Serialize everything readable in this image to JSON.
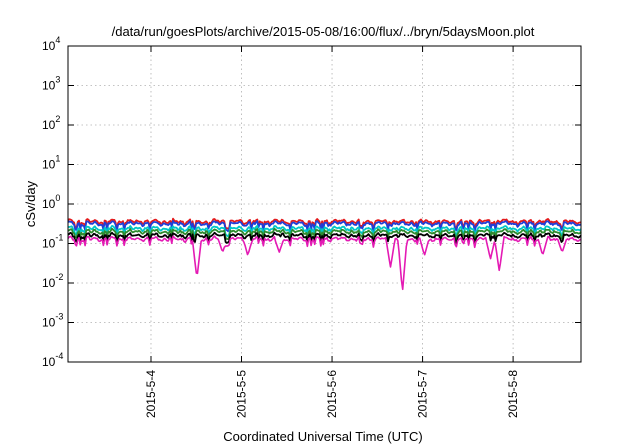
{
  "chart_data": {
    "type": "line",
    "title": "/data/run/goesPlots/archive/2015-05-08/16:00/flux/../bryn/5daysMoon.plot",
    "xlabel": "Coordinated Universal Time (UTC)",
    "ylabel": "cSv/day",
    "yscale": "log",
    "ylim": [
      0.0001,
      10000
    ],
    "xlim": [
      "2015-05-03T02:00",
      "2015-05-08T18:00"
    ],
    "grid": true,
    "legend": "none",
    "y_ticks": [
      {
        "base": "10",
        "exp": "-4",
        "value": 0.0001
      },
      {
        "base": "10",
        "exp": "-3",
        "value": 0.001
      },
      {
        "base": "10",
        "exp": "-2",
        "value": 0.01
      },
      {
        "base": "10",
        "exp": "-1",
        "value": 0.1
      },
      {
        "base": "10",
        "exp": "0",
        "value": 1
      },
      {
        "base": "10",
        "exp": "1",
        "value": 10
      },
      {
        "base": "10",
        "exp": "2",
        "value": 100
      },
      {
        "base": "10",
        "exp": "3",
        "value": 1000
      },
      {
        "base": "10",
        "exp": "4",
        "value": 10000
      }
    ],
    "x_ticks": [
      {
        "label": "2015-5-4",
        "value": "2015-05-04T00:00"
      },
      {
        "label": "2015-5-5",
        "value": "2015-05-05T00:00"
      },
      {
        "label": "2015-5-6",
        "value": "2015-05-06T00:00"
      },
      {
        "label": "2015-5-7",
        "value": "2015-05-07T00:00"
      },
      {
        "label": "2015-5-8",
        "value": "2015-05-08T00:00"
      }
    ],
    "series": [
      {
        "color": "#e41a1c",
        "level": 0.36
      },
      {
        "color": "#1f3fd8",
        "level": 0.32
      },
      {
        "color": "#00c8c8",
        "level": 0.24
      },
      {
        "color": "#2e8b2e",
        "level": 0.2
      },
      {
        "color": "#000000",
        "level": 0.16
      },
      {
        "color": "#e41ab4",
        "level": 0.13
      }
    ],
    "magenta_dips": [
      {
        "x": "2015-05-04T12:10",
        "value": 0.013
      },
      {
        "x": "2015-05-04T19:00",
        "value": 0.06
      },
      {
        "x": "2015-05-05T01:40",
        "value": 0.05
      },
      {
        "x": "2015-05-05T10:00",
        "value": 0.06
      },
      {
        "x": "2015-05-06T15:30",
        "value": 0.025
      },
      {
        "x": "2015-05-06T18:40",
        "value": 0.006
      },
      {
        "x": "2015-05-07T00:30",
        "value": 0.05
      },
      {
        "x": "2015-05-07T18:00",
        "value": 0.04
      },
      {
        "x": "2015-05-07T20:20",
        "value": 0.02
      },
      {
        "x": "2015-05-08T07:50",
        "value": 0.05
      },
      {
        "x": "2015-05-08T13:00",
        "value": 0.06
      }
    ]
  }
}
